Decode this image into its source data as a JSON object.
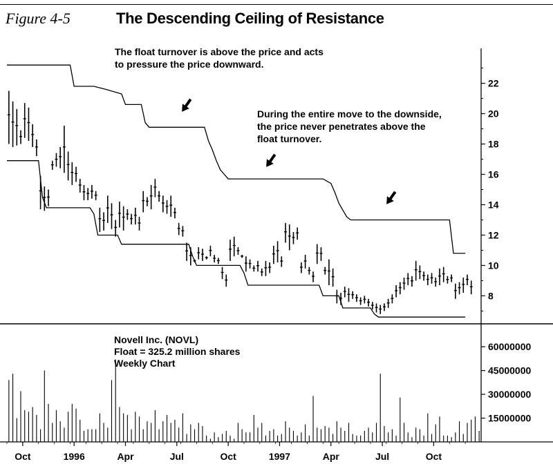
{
  "figure_label": "Figure 4-5",
  "title": "The Descending Ceiling of Resistance",
  "annotations": {
    "top": [
      "The float turnover is above the price and acts",
      "to pressure the price downward."
    ],
    "middle": [
      "During the entire move to the downside,",
      "the price never penetrates above the",
      "float turnover."
    ]
  },
  "info": [
    "Novell Inc. (NOVL)",
    "Float = 325.2 million shares",
    "Weekly Chart"
  ],
  "chart_data": [
    {
      "type": "line",
      "panel": "price",
      "x_unit": "week",
      "x_ticks": [
        "Oct",
        "1996",
        "Apr",
        "Jul",
        "Oct",
        "1997",
        "Apr",
        "Jul",
        "Oct"
      ],
      "x_tick_weeks": [
        4,
        17,
        30,
        43,
        56,
        69,
        82,
        95,
        108
      ],
      "y_ticks": [
        "8",
        "10",
        "12",
        "14",
        "16",
        "18",
        "20",
        "22"
      ],
      "ylim": [
        6.2,
        24.3
      ],
      "xlim": [
        0,
        120
      ],
      "grid": false,
      "series": [
        {
          "role": "upper-float-turnover",
          "points": [
            [
              0,
              23.2
            ],
            [
              16,
              23.2
            ],
            [
              17,
              21.8
            ],
            [
              22,
              21.8
            ],
            [
              25,
              21.6
            ],
            [
              29,
              21.3
            ],
            [
              30,
              20.6
            ],
            [
              34,
              20.6
            ],
            [
              35,
              19.4
            ],
            [
              36,
              19.1
            ],
            [
              50,
              19.1
            ],
            [
              51,
              18.2
            ],
            [
              52,
              17.6
            ],
            [
              53,
              16.9
            ],
            [
              54,
              16.3
            ],
            [
              55,
              16.0
            ],
            [
              56,
              15.7
            ],
            [
              80,
              15.7
            ],
            [
              82,
              15.4
            ],
            [
              83,
              14.8
            ],
            [
              84,
              14.1
            ],
            [
              86,
              13.2
            ],
            [
              87,
              13.0
            ],
            [
              112,
              13.0
            ],
            [
              113,
              10.8
            ],
            [
              116,
              10.8
            ]
          ]
        },
        {
          "role": "lower-float-turnover",
          "points": [
            [
              0,
              16.9
            ],
            [
              8,
              16.9
            ],
            [
              9,
              14.5
            ],
            [
              10,
              13.8
            ],
            [
              21,
              13.8
            ],
            [
              22,
              13.4
            ],
            [
              23,
              12.0
            ],
            [
              28,
              12.0
            ],
            [
              29,
              11.4
            ],
            [
              46,
              11.4
            ],
            [
              47,
              10.6
            ],
            [
              48,
              10.0
            ],
            [
              59,
              10.0
            ],
            [
              60,
              9.5
            ],
            [
              61,
              8.7
            ],
            [
              79,
              8.7
            ],
            [
              80,
              8.0
            ],
            [
              84,
              8.0
            ],
            [
              85,
              7.2
            ],
            [
              92,
              7.2
            ],
            [
              93,
              6.8
            ],
            [
              94,
              6.6
            ],
            [
              116,
              6.6
            ]
          ]
        },
        {
          "role": "weekly-price-bars",
          "values": [
            [
              21.5,
              18.0
            ],
            [
              20.8,
              17.8
            ],
            [
              20.3,
              17.9
            ],
            [
              18.9,
              18.0
            ],
            [
              20.7,
              18.4
            ],
            [
              20.4,
              18.2
            ],
            [
              19.3,
              17.8
            ],
            [
              18.3,
              17.2
            ],
            [
              15.9,
              13.7
            ],
            [
              15.2,
              13.6
            ],
            [
              15.0,
              13.9
            ],
            [
              16.9,
              16.3
            ],
            [
              17.4,
              16.5
            ],
            [
              17.8,
              16.4
            ],
            [
              19.2,
              16.1
            ],
            [
              17.5,
              15.6
            ],
            [
              16.8,
              15.3
            ],
            [
              16.5,
              15.5
            ],
            [
              15.7,
              14.8
            ],
            [
              15.3,
              14.3
            ],
            [
              15.1,
              14.3
            ],
            [
              15.3,
              14.4
            ],
            [
              14.9,
              14.3
            ],
            [
              13.8,
              12.2
            ],
            [
              13.5,
              12.3
            ],
            [
              14.6,
              12.8
            ],
            [
              14.1,
              12.4
            ],
            [
              13.0,
              11.9
            ],
            [
              14.2,
              12.5
            ],
            [
              13.9,
              12.3
            ],
            [
              13.7,
              13.0
            ],
            [
              13.4,
              12.7
            ],
            [
              13.8,
              12.7
            ],
            [
              13.2,
              12.3
            ],
            [
              14.9,
              13.5
            ],
            [
              14.5,
              13.9
            ],
            [
              15.3,
              13.7
            ],
            [
              15.7,
              14.5
            ],
            [
              14.9,
              14.2
            ],
            [
              14.6,
              13.5
            ],
            [
              14.3,
              13.4
            ],
            [
              14.6,
              13.2
            ],
            [
              13.8,
              13.1
            ],
            [
              12.8,
              12.0
            ],
            [
              12.6,
              11.9
            ],
            [
              11.5,
              10.3
            ],
            [
              11.2,
              10.0
            ],
            [
              10.4,
              10.2
            ],
            [
              11.2,
              10.4
            ],
            [
              11.1,
              10.3
            ],
            [
              10.6,
              10.4
            ],
            [
              11.3,
              10.6
            ],
            [
              10.7,
              10.2
            ],
            [
              10.5,
              10.1
            ],
            [
              9.9,
              9.1
            ],
            [
              9.4,
              8.6
            ],
            [
              11.7,
              10.3
            ],
            [
              11.9,
              10.6
            ],
            [
              11.2,
              10.7
            ],
            [
              10.7,
              10.5
            ],
            [
              10.6,
              9.6
            ],
            [
              10.4,
              9.8
            ],
            [
              10.0,
              9.6
            ],
            [
              10.3,
              9.6
            ],
            [
              9.8,
              9.3
            ],
            [
              10.3,
              9.3
            ],
            [
              10.2,
              9.5
            ],
            [
              11.3,
              10.1
            ],
            [
              11.6,
              10.2
            ],
            [
              10.6,
              9.9
            ],
            [
              12.8,
              11.5
            ],
            [
              12.7,
              11.0
            ],
            [
              12.2,
              11.4
            ],
            [
              12.5,
              11.7
            ],
            [
              10.2,
              9.5
            ],
            [
              10.7,
              9.8
            ],
            [
              9.9,
              9.4
            ],
            [
              9.6,
              8.9
            ],
            [
              11.4,
              10.1
            ],
            [
              11.2,
              10.3
            ],
            [
              9.9,
              9.4
            ],
            [
              10.4,
              8.7
            ],
            [
              9.8,
              8.6
            ],
            [
              8.4,
              7.5
            ],
            [
              8.2,
              7.4
            ],
            [
              8.6,
              7.9
            ],
            [
              8.5,
              7.6
            ],
            [
              8.3,
              7.8
            ],
            [
              8.1,
              7.6
            ],
            [
              7.9,
              7.4
            ],
            [
              8.0,
              7.5
            ],
            [
              7.8,
              7.3
            ],
            [
              7.6,
              7.1
            ],
            [
              7.5,
              6.9
            ],
            [
              7.4,
              6.8
            ],
            [
              7.5,
              7.0
            ],
            [
              7.8,
              7.2
            ],
            [
              8.1,
              7.5
            ],
            [
              8.7,
              7.9
            ],
            [
              8.9,
              8.1
            ],
            [
              9.2,
              8.4
            ],
            [
              9.5,
              8.7
            ],
            [
              9.3,
              8.6
            ],
            [
              10.3,
              9.0
            ],
            [
              10.0,
              9.1
            ],
            [
              9.6,
              9.0
            ],
            [
              9.4,
              8.7
            ],
            [
              9.5,
              8.8
            ],
            [
              9.2,
              8.6
            ],
            [
              9.8,
              8.7
            ],
            [
              9.9,
              8.9
            ],
            [
              9.3,
              8.8
            ],
            [
              9.4,
              8.9
            ],
            [
              8.8,
              7.8
            ],
            [
              8.9,
              8.1
            ],
            [
              9.2,
              8.2
            ],
            [
              9.4,
              8.7
            ],
            [
              9.0,
              8.1
            ]
          ]
        }
      ]
    },
    {
      "type": "bar",
      "panel": "volume",
      "x_unit": "week",
      "y_ticks": [
        "15000000",
        "30000000",
        "45000000",
        "60000000"
      ],
      "ylim": [
        0,
        74000000
      ],
      "values": [
        39,
        43,
        15,
        32,
        20,
        19,
        22,
        17,
        8,
        45,
        24,
        12,
        20,
        13,
        9,
        19,
        24,
        21,
        14,
        7,
        8,
        8,
        8,
        18,
        12,
        9,
        39,
        52,
        22,
        18,
        17,
        8,
        19,
        16,
        8,
        13,
        12,
        20,
        8,
        13,
        17,
        12,
        14,
        9,
        18,
        5,
        11,
        8,
        12,
        10,
        4,
        2,
        6,
        3,
        5,
        7,
        4,
        2,
        12,
        8,
        6,
        6,
        17,
        9,
        12,
        4,
        7,
        8,
        4,
        5,
        13,
        9,
        7,
        4,
        6,
        11,
        4,
        29,
        9,
        8,
        10,
        9,
        5,
        13,
        9,
        7,
        12,
        5,
        4,
        4,
        7,
        9,
        6,
        12,
        43,
        10,
        6,
        8,
        4,
        28,
        12,
        6,
        3,
        9,
        8,
        4,
        18,
        5,
        11,
        16,
        4,
        4,
        3,
        6,
        13,
        5,
        12,
        14,
        16,
        7
      ]
    }
  ]
}
